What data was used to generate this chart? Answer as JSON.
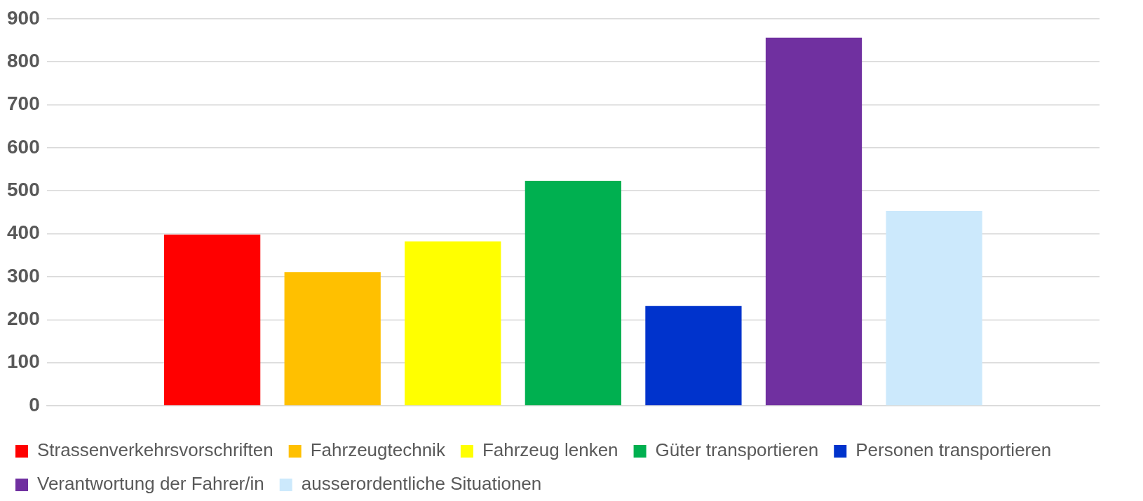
{
  "chart_data": {
    "type": "bar",
    "categories": [
      null
    ],
    "series": [
      {
        "name": "Strassenverkehrsvorschriften",
        "color": "#ff0000",
        "values": [
          398
        ]
      },
      {
        "name": "Fahrzeugtechnik",
        "color": "#ffc000",
        "values": [
          311
        ]
      },
      {
        "name": "Fahrzeug lenken",
        "color": "#ffff00",
        "values": [
          382
        ]
      },
      {
        "name": "Güter transportieren",
        "color": "#00b050",
        "values": [
          523
        ]
      },
      {
        "name": "Personen transportieren",
        "color": "#0033cc",
        "values": [
          232
        ]
      },
      {
        "name": "Verantwortung der Fahrer/in",
        "color": "#7030a0",
        "values": [
          856
        ]
      },
      {
        "name": "ausserordentliche Situationen",
        "color": "#cce9fc",
        "values": [
          453
        ]
      }
    ],
    "ylim": [
      0,
      900
    ],
    "yticks": [
      0,
      100,
      200,
      300,
      400,
      500,
      600,
      700,
      800,
      900
    ],
    "grid": "y",
    "legend": "bottom"
  }
}
